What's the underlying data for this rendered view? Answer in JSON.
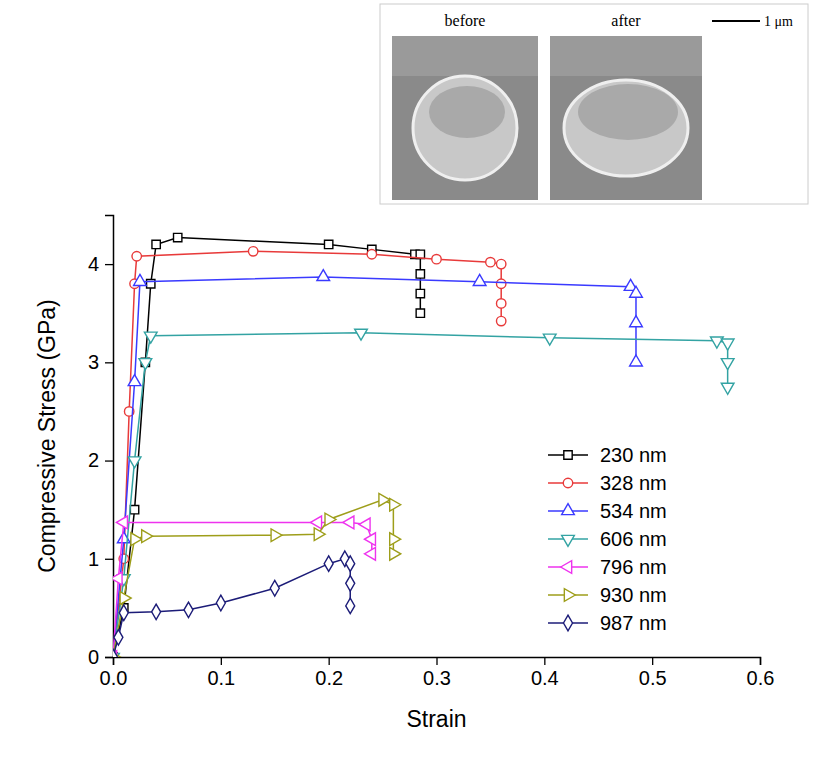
{
  "chart_data": {
    "type": "line",
    "x_label": "Strain",
    "y_label": "Compressive Stress (GPa)",
    "annotations": [
      "before",
      "after",
      "1 μm"
    ],
    "xlim": [
      0,
      0.6
    ],
    "ylim": [
      0,
      4.5
    ],
    "xticks": [
      {
        "value": 0,
        "label": "0.0"
      },
      0.1,
      0.2,
      0.3,
      0.4,
      0.5,
      0.6
    ],
    "yticks": [
      0,
      1,
      2,
      3,
      4
    ],
    "grid": false,
    "legend": "lower right",
    "series": [
      {
        "name": "230 nm",
        "color": "#000000",
        "marker": "square",
        "x": [
          0,
          0.01,
          0.02,
          0.03,
          0.035,
          0.04,
          0.06,
          0.2,
          0.24,
          0.28,
          0.285,
          0.285,
          0.285,
          0.285
        ],
        "values": [
          0,
          0.5,
          1.5,
          3.0,
          3.8,
          4.2,
          4.27,
          4.2,
          4.15,
          4.1,
          4.1,
          3.9,
          3.7,
          3.5
        ]
      },
      {
        "name": "328 nm",
        "color": "#e83a3a",
        "marker": "circle",
        "x": [
          0,
          0.01,
          0.015,
          0.02,
          0.022,
          0.13,
          0.24,
          0.3,
          0.35,
          0.36,
          0.36,
          0.36,
          0.36
        ],
        "values": [
          0,
          1.0,
          2.5,
          3.8,
          4.08,
          4.13,
          4.1,
          4.05,
          4.02,
          4.0,
          3.8,
          3.6,
          3.42
        ]
      },
      {
        "name": "534 nm",
        "color": "#3a3aff",
        "marker": "triangle-up",
        "x": [
          0,
          0.01,
          0.02,
          0.025,
          0.195,
          0.34,
          0.48,
          0.485,
          0.485,
          0.485
        ],
        "values": [
          0,
          1.2,
          2.8,
          3.82,
          3.87,
          3.82,
          3.77,
          3.7,
          3.4,
          3.0
        ]
      },
      {
        "name": "606 nm",
        "color": "#33a3a3",
        "marker": "triangle-down",
        "x": [
          0,
          0.01,
          0.02,
          0.03,
          0.035,
          0.23,
          0.405,
          0.56,
          0.57,
          0.57,
          0.57
        ],
        "values": [
          0,
          0.8,
          2.0,
          3.0,
          3.27,
          3.3,
          3.25,
          3.22,
          3.2,
          3.0,
          2.75
        ]
      },
      {
        "name": "796 nm",
        "color": "#ee33ee",
        "marker": "triangle-left",
        "x": [
          0,
          0.005,
          0.01,
          0.19,
          0.22,
          0.235,
          0.24,
          0.24
        ],
        "values": [
          0,
          0.8,
          1.37,
          1.37,
          1.37,
          1.35,
          1.2,
          1.05
        ]
      },
      {
        "name": "930 nm",
        "color": "#9e9e1a",
        "marker": "triangle-right",
        "x": [
          0,
          0.01,
          0.02,
          0.03,
          0.15,
          0.19,
          0.2,
          0.25,
          0.26,
          0.26,
          0.26
        ],
        "values": [
          0,
          0.6,
          1.2,
          1.23,
          1.24,
          1.25,
          1.4,
          1.6,
          1.55,
          1.2,
          1.05
        ]
      },
      {
        "name": "987 nm",
        "color": "#1c1c78",
        "marker": "diamond",
        "x": [
          0,
          0.005,
          0.01,
          0.04,
          0.07,
          0.1,
          0.15,
          0.2,
          0.215,
          0.22,
          0.22,
          0.22
        ],
        "values": [
          0,
          0.2,
          0.45,
          0.46,
          0.48,
          0.55,
          0.7,
          0.95,
          1.0,
          0.95,
          0.75,
          0.52
        ]
      }
    ]
  }
}
